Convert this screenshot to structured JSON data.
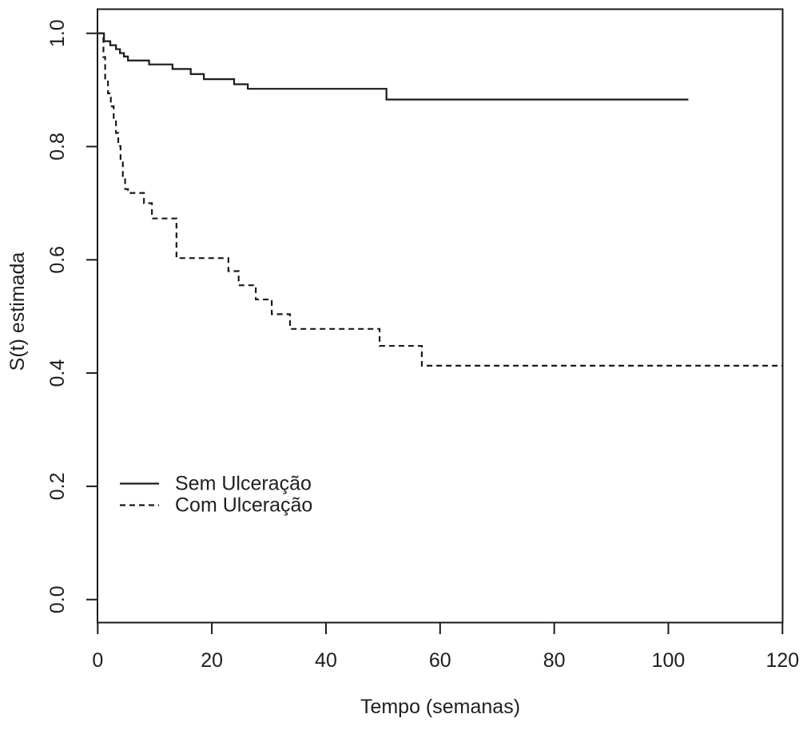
{
  "figure": {
    "background_color": "#ffffff",
    "line_color": "#1a1a1a",
    "text_color": "#1f1f1f"
  },
  "chart_data": {
    "type": "line",
    "subtype": "kaplan-meier-step",
    "title": "",
    "xlabel": "Tempo (semanas)",
    "ylabel": "S(t) estimada",
    "xlim": [
      0,
      120
    ],
    "ylim": [
      0.0,
      1.0
    ],
    "x_ticks": [
      0,
      20,
      40,
      60,
      80,
      100,
      120
    ],
    "y_ticks": [
      "0.0",
      "0.2",
      "0.4",
      "0.6",
      "0.8",
      "1.0"
    ],
    "grid": false,
    "legend_position": "left-middle",
    "series": [
      {
        "name": "Sem Ulceração",
        "style": "solid",
        "points": [
          [
            0,
            1.0
          ],
          [
            1.1,
            0.986
          ],
          [
            2.2,
            0.979
          ],
          [
            3.2,
            0.972
          ],
          [
            3.9,
            0.965
          ],
          [
            4.6,
            0.959
          ],
          [
            5.3,
            0.952
          ],
          [
            9.0,
            0.945
          ],
          [
            13.1,
            0.937
          ],
          [
            16.3,
            0.928
          ],
          [
            18.6,
            0.919
          ],
          [
            23.9,
            0.91
          ],
          [
            26.3,
            0.902
          ],
          [
            50.6,
            0.883
          ]
        ],
        "end_t": 103.5
      },
      {
        "name": "Com Ulceração",
        "style": "dashed",
        "points": [
          [
            0,
            1.0
          ],
          [
            1.0,
            0.958
          ],
          [
            1.3,
            0.917
          ],
          [
            1.8,
            0.894
          ],
          [
            2.3,
            0.871
          ],
          [
            2.8,
            0.848
          ],
          [
            3.2,
            0.824
          ],
          [
            3.6,
            0.801
          ],
          [
            4.0,
            0.772
          ],
          [
            4.4,
            0.748
          ],
          [
            4.8,
            0.725
          ],
          [
            5.3,
            0.718
          ],
          [
            8.1,
            0.7
          ],
          [
            9.5,
            0.673
          ],
          [
            13.8,
            0.603
          ],
          [
            22.9,
            0.58
          ],
          [
            24.7,
            0.555
          ],
          [
            27.7,
            0.53
          ],
          [
            30.5,
            0.504
          ],
          [
            33.7,
            0.478
          ],
          [
            49.4,
            0.448
          ],
          [
            56.8,
            0.413
          ]
        ],
        "end_t": 120
      }
    ]
  }
}
